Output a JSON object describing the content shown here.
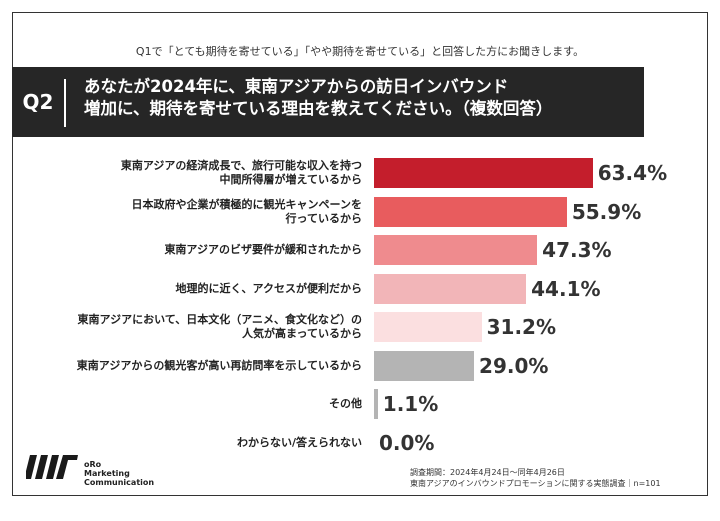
{
  "header": {
    "subtitle": "Q1で「とても期待を寄せている」「やや期待を寄せている」と回答した方にお聞きします。",
    "question_label": "Q2",
    "question_line1": "あなたが2024年に、東南アジアからの訪日インバウンド",
    "question_line2": "増加に、期待を寄せている理由を教えてください。（複数回答）"
  },
  "chart_data": {
    "type": "bar",
    "orientation": "horizontal",
    "unit": "%",
    "xlim": [
      0,
      100
    ],
    "categories": [
      [
        "東南アジアの経済成長で、旅行可能な収入を持つ",
        "中間所得層が増えているから"
      ],
      [
        "日本政府や企業が積極的に観光キャンペーンを",
        "行っているから"
      ],
      [
        "東南アジアのビザ要件が緩和されたから"
      ],
      [
        "地理的に近く、アクセスが便利だから"
      ],
      [
        "東南アジアにおいて、日本文化（アニメ、食文化など）の",
        "人気が高まっているから"
      ],
      [
        "東南アジアからの観光客が高い再訪問率を示しているから"
      ],
      [
        "その他"
      ],
      [
        "わからない/答えられない"
      ]
    ],
    "values": [
      63.4,
      55.9,
      47.3,
      44.1,
      31.2,
      29.0,
      1.1,
      0.0
    ],
    "value_labels": [
      "63.4%",
      "55.9%",
      "47.3%",
      "44.1%",
      "31.2%",
      "29.0%",
      "1.1%",
      "0.0%"
    ],
    "colors": [
      "#c41e2c",
      "#e85c5e",
      "#ef8b8e",
      "#f2b5b8",
      "#fbdfe0",
      "#b4b4b4",
      "#b4b4b4",
      "#b4b4b4"
    ]
  },
  "footer": {
    "logo_lines": [
      "oRo",
      "Marketing",
      "Communication"
    ],
    "survey_period": "調査期間：2024年4月24日～同年4月26日",
    "survey_name": "東南アジアのインバウンドプロモーションに関する実態調査｜n=101"
  }
}
